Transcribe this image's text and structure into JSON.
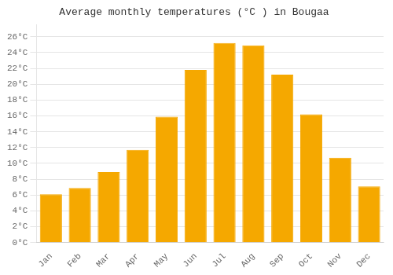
{
  "chart_data": {
    "type": "bar",
    "title": "Average monthly temperatures (°C ) in Bougaa",
    "categories": [
      "Jan",
      "Feb",
      "Mar",
      "Apr",
      "May",
      "Jun",
      "Jul",
      "Aug",
      "Sep",
      "Oct",
      "Nov",
      "Dec"
    ],
    "values": [
      6.1,
      6.9,
      8.9,
      11.7,
      15.9,
      21.8,
      25.2,
      24.9,
      21.2,
      16.2,
      10.7,
      7.1
    ],
    "color": "#F5A800",
    "ylim": [
      0,
      27.5
    ],
    "yticks": [
      {
        "value": 0,
        "label": "0°C"
      },
      {
        "value": 2,
        "label": "2°C"
      },
      {
        "value": 4,
        "label": "4°C"
      },
      {
        "value": 6,
        "label": "6°C"
      },
      {
        "value": 8,
        "label": "8°C"
      },
      {
        "value": 10,
        "label": "10°C"
      },
      {
        "value": 12,
        "label": "12°C"
      },
      {
        "value": 14,
        "label": "14°C"
      },
      {
        "value": 16,
        "label": "16°C"
      },
      {
        "value": 18,
        "label": "18°C"
      },
      {
        "value": 20,
        "label": "20°C"
      },
      {
        "value": 22,
        "label": "22°C"
      },
      {
        "value": 24,
        "label": "24°C"
      },
      {
        "value": 26,
        "label": "26°C"
      }
    ],
    "grid": true
  }
}
